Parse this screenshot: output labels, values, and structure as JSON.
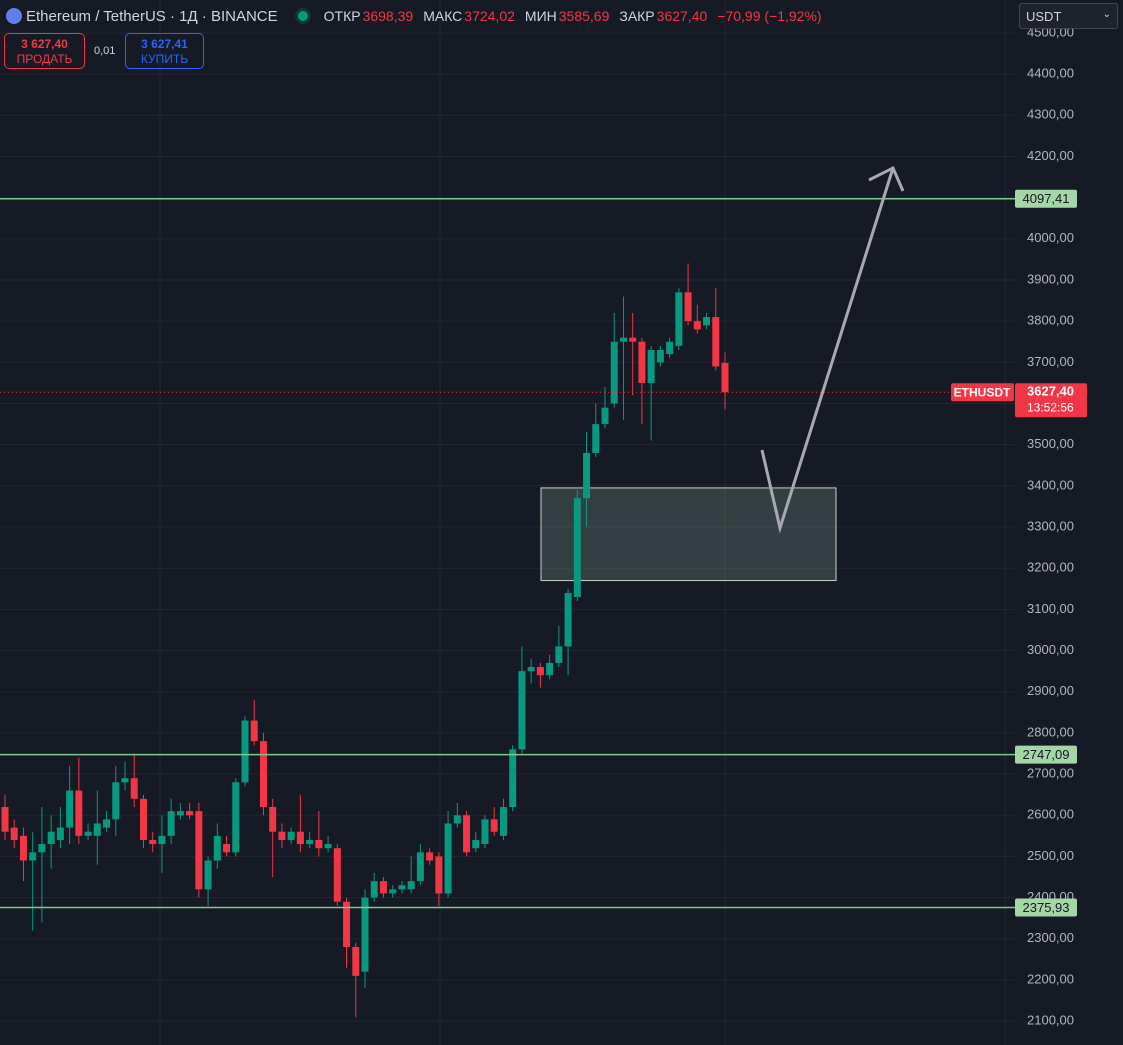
{
  "header": {
    "symbol": "Ethereum / TetherUS · 1Д · BINANCE",
    "ohlc": [
      {
        "name": "ОТКР",
        "value": "3698,39"
      },
      {
        "name": "МАКС",
        "value": "3724,02"
      },
      {
        "name": "МИН",
        "value": "3585,69"
      },
      {
        "name": "ЗАКР",
        "value": "3627,40"
      }
    ],
    "change": "−70,99 (−1,92%)",
    "sell": {
      "price": "3 627,40",
      "label": "ПРОДАТЬ"
    },
    "spread": "0,01",
    "buy": {
      "price": "3 627,41",
      "label": "КУПИТЬ"
    },
    "currency": "USDT"
  },
  "chart_data": {
    "type": "candlestick",
    "open": [
      2620,
      2570,
      2550,
      2490,
      2510,
      2530,
      2540,
      2570,
      2660,
      2550,
      2550,
      2570,
      2590,
      2680,
      2690,
      2640,
      2540,
      2530,
      2550,
      2600,
      2610,
      2610,
      2420,
      2490,
      2530,
      2510,
      2680,
      2830,
      2780,
      2620,
      2560,
      2540,
      2560,
      2530,
      2540,
      2520,
      2520,
      2390,
      2280,
      2220,
      2400,
      2440,
      2410,
      2420,
      2420,
      2440,
      2510,
      2500,
      2410,
      2580,
      2600,
      2520,
      2530,
      2590,
      2550,
      2620,
      2760,
      2950,
      2960,
      2940,
      2970,
      3010,
      3130,
      3370,
      3480,
      3550,
      3600,
      3750,
      3760,
      3750,
      3650,
      3700,
      3720,
      3740,
      3870,
      3800,
      3790,
      3810,
      3698.39
    ],
    "high": [
      2650,
      2590,
      2570,
      2560,
      2620,
      2600,
      2620,
      2720,
      2740,
      2580,
      2660,
      2610,
      2720,
      2730,
      2750,
      2650,
      2560,
      2600,
      2640,
      2630,
      2630,
      2630,
      2500,
      2580,
      2550,
      2690,
      2840,
      2880,
      2800,
      2640,
      2580,
      2570,
      2650,
      2560,
      2610,
      2550,
      2530,
      2400,
      2290,
      2420,
      2460,
      2450,
      2430,
      2440,
      2500,
      2530,
      2520,
      2510,
      2610,
      2630,
      2610,
      2560,
      2600,
      2620,
      2640,
      2770,
      3010,
      2980,
      2970,
      2990,
      3060,
      3150,
      3390,
      3530,
      3600,
      3640,
      3820,
      3860,
      3820,
      3760,
      3740,
      3740,
      3760,
      3880,
      3940,
      3840,
      3820,
      3880,
      3724.02
    ],
    "low": [
      2540,
      2520,
      2440,
      2320,
      2340,
      2470,
      2520,
      2530,
      2530,
      2540,
      2480,
      2560,
      2550,
      2660,
      2620,
      2520,
      2510,
      2460,
      2530,
      2590,
      2590,
      2400,
      2380,
      2470,
      2500,
      2500,
      2670,
      2770,
      2600,
      2450,
      2520,
      2530,
      2510,
      2520,
      2500,
      2510,
      2380,
      2230,
      2110,
      2180,
      2390,
      2400,
      2400,
      2410,
      2410,
      2430,
      2480,
      2380,
      2400,
      2570,
      2500,
      2510,
      2520,
      2550,
      2540,
      2610,
      2750,
      2920,
      2910,
      2930,
      2960,
      2940,
      3120,
      3300,
      3470,
      3540,
      3590,
      3560,
      3620,
      3550,
      3510,
      3690,
      3710,
      3730,
      3790,
      3770,
      3780,
      3680,
      3585.69
    ],
    "close": [
      2560,
      2540,
      2490,
      2510,
      2530,
      2560,
      2570,
      2660,
      2550,
      2560,
      2580,
      2590,
      2680,
      2690,
      2640,
      2540,
      2530,
      2550,
      2610,
      2610,
      2600,
      2420,
      2490,
      2550,
      2510,
      2680,
      2830,
      2780,
      2620,
      2560,
      2540,
      2560,
      2530,
      2540,
      2520,
      2530,
      2390,
      2280,
      2210,
      2400,
      2440,
      2410,
      2420,
      2430,
      2440,
      2510,
      2490,
      2410,
      2580,
      2600,
      2510,
      2540,
      2590,
      2560,
      2620,
      2760,
      2950,
      2960,
      2940,
      2970,
      3010,
      3140,
      3370,
      3480,
      3550,
      3590,
      3750,
      3760,
      3750,
      3650,
      3730,
      3730,
      3750,
      3870,
      3800,
      3780,
      3810,
      3690,
      3627.4
    ],
    "colors": {
      "up": "#089981",
      "down": "#f23645",
      "level": "#7ec98a"
    },
    "ylim": [
      2042,
      4580
    ],
    "yticks": [
      {
        "value": 2100,
        "label": "2100,00"
      },
      {
        "value": 2200,
        "label": "2200,00"
      },
      {
        "value": 2300,
        "label": "2300,00"
      },
      {
        "value": 2400,
        "label": "2400,00"
      },
      {
        "value": 2500,
        "label": "2500,00"
      },
      {
        "value": 2600,
        "label": "2600,00"
      },
      {
        "value": 2700,
        "label": "2700,00"
      },
      {
        "value": 2800,
        "label": "2800,00"
      },
      {
        "value": 2900,
        "label": "2900,00"
      },
      {
        "value": 3000,
        "label": "3000,00"
      },
      {
        "value": 3100,
        "label": "3100,00"
      },
      {
        "value": 3200,
        "label": "3200,00"
      },
      {
        "value": 3300,
        "label": "3300,00"
      },
      {
        "value": 3400,
        "label": "3400,00"
      },
      {
        "value": 3500,
        "label": "3500,00"
      },
      {
        "value": 3600,
        "label": "3600,00"
      },
      {
        "value": 3700,
        "label": "3700,00"
      },
      {
        "value": 3800,
        "label": "3800,00"
      },
      {
        "value": 3900,
        "label": "3900,00"
      },
      {
        "value": 4000,
        "label": "4000,00"
      },
      {
        "value": 4100,
        "label": "4100,00"
      },
      {
        "value": 4200,
        "label": "4200,00"
      },
      {
        "value": 4300,
        "label": "4300,00"
      },
      {
        "value": 4400,
        "label": "4400,00"
      },
      {
        "value": 4500,
        "label": "4500,00"
      }
    ],
    "grid": true,
    "levels": [
      {
        "value": 4097.41,
        "label": "4097,41"
      },
      {
        "value": 2747.09,
        "label": "2747,09"
      },
      {
        "value": 2375.93,
        "label": "2375,93"
      }
    ],
    "last_price": {
      "value": 3627.4,
      "label": "3627,40",
      "symbol": "ETHUSDT",
      "countdown": "13:52:56"
    },
    "zone": {
      "top": 3395,
      "bottom": 3170
    }
  }
}
